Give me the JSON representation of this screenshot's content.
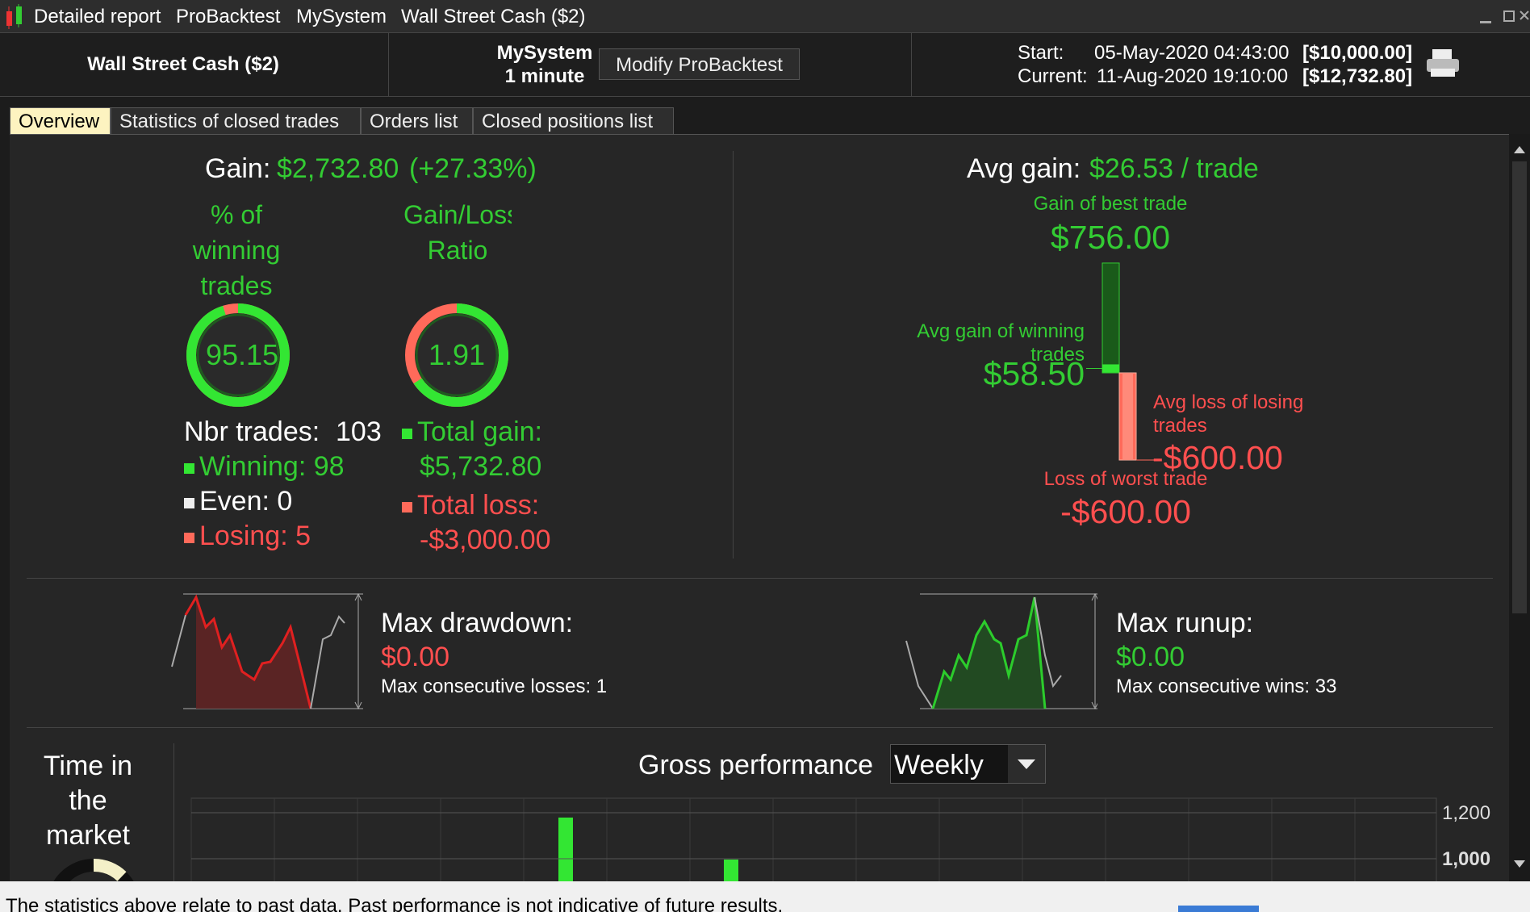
{
  "window": {
    "title_parts": [
      "Detailed report",
      "ProBacktest",
      "MySystem",
      "Wall Street Cash ($2)"
    ]
  },
  "header": {
    "instrument": "Wall Street Cash ($2)",
    "system": "MySystem",
    "timeframe": "1 minute",
    "button": "Modify ProBacktest",
    "start_label": "Start:",
    "start_date": "05-May-2020 04:43:00",
    "start_capital": "[$10,000.00]",
    "current_label": "Current:",
    "current_date": "11-Aug-2020 19:10:00",
    "current_capital": "[$12,732.80]"
  },
  "tabs": [
    "Overview",
    "Statistics of closed trades",
    "Orders list",
    "Closed positions list"
  ],
  "overview": {
    "gain_label": "Gain:",
    "gain": "$2,732.80",
    "gain_pct": "(+27.33%)",
    "winning_pct_label": "% of winning trades",
    "winning_pct": 95.15,
    "ratio_label": "Gain/Loss Ratio",
    "ratio": 1.91,
    "nbr_trades_label": "Nbr trades:",
    "nbr_trades": 103,
    "winning_label": "Winning:",
    "winning": 98,
    "even_label": "Even:",
    "even": 0,
    "losing_label": "Losing:",
    "losing": 5,
    "total_gain_label": "Total gain:",
    "total_gain": "$5,732.80",
    "total_loss_label": "Total loss:",
    "total_loss": "-$3,000.00",
    "avg_gain_label": "Avg gain:",
    "avg_gain": "$26.53 / trade",
    "best_trade_label": "Gain of best trade",
    "best_trade": {
      "value": 756,
      "label": "$756.00"
    },
    "avg_winning_label": "Avg gain of winning trades",
    "avg_winning": {
      "value": 58.5,
      "label": "$58.50"
    },
    "avg_losing_label": "Avg loss of losing trades",
    "avg_losing": {
      "value": -600,
      "label": "-$600.00"
    },
    "worst_trade_label": "Loss of worst trade",
    "worst_trade": {
      "value": -600,
      "label": "-$600.00"
    },
    "drawdown_label": "Max drawdown:",
    "drawdown": "$0.00",
    "consecutive_losses": "Max consecutive losses: 1",
    "runup_label": "Max runup:",
    "runup": "$0.00",
    "consecutive_wins": "Max consecutive wins: 33",
    "time_in_market_label": "Time in the market",
    "gross_performance": {
      "title": "Gross performance",
      "period": "Weekly",
      "ylim": [
        902,
        1263
      ],
      "yticks": [
        {
          "value": 1200,
          "label": "1,200"
        },
        {
          "value": 1000,
          "label": "1,000"
        }
      ]
    }
  },
  "footer": "The statistics above relate to past data. Past performance is not indicative of future results."
}
